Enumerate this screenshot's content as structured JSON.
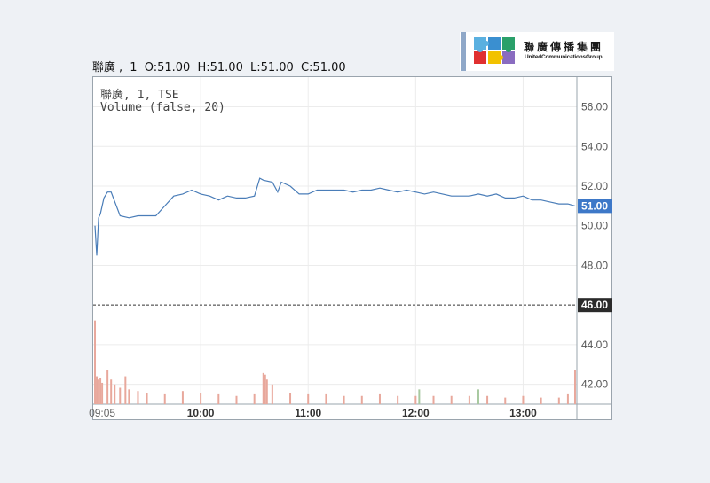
{
  "logo": {
    "name_cn": "聯廣傳播集團",
    "name_en": "UnitedCommunicationsGroup"
  },
  "legend": {
    "symbol": "聯廣",
    "interval": "1",
    "open": "O:51.00",
    "high": "H:51.00",
    "low": "L:51.00",
    "close": "C:51.00"
  },
  "pane": {
    "title": "聯廣, 1, TSE",
    "volume_label": "Volume (false, 20)"
  },
  "colors": {
    "price_line": "#4a7db8",
    "volume_bar": "#e8a89c",
    "volume_bar_up": "#a8c9a0",
    "last_price_tag": "#3d78c8",
    "ref_price_tag": "#2b2b2b",
    "grid": "#ececec"
  },
  "chart_data": {
    "type": "line",
    "title": "",
    "xlabel": "",
    "ylabel": "",
    "ylim": [
      41,
      57.5
    ],
    "x_range": [
      "09:00",
      "13:30"
    ],
    "x_ticks": [
      "09:05",
      "10:00",
      "11:00",
      "12:00",
      "13:00"
    ],
    "y_ticks": [
      "56.00",
      "54.00",
      "52.00",
      "50.00",
      "48.00",
      "44.00",
      "42.00"
    ],
    "last_price": "51.00",
    "reference_price": "46.00",
    "grid": true,
    "series": [
      {
        "type": "line",
        "x": [
          "09:01",
          "09:02",
          "09:03",
          "09:04",
          "09:06",
          "09:08",
          "09:10",
          "09:15",
          "09:20",
          "09:25",
          "09:30",
          "09:35",
          "09:40",
          "09:45",
          "09:50",
          "09:55",
          "10:00",
          "10:05",
          "10:10",
          "10:15",
          "10:20",
          "10:25",
          "10:30",
          "10:33",
          "10:35",
          "10:40",
          "10:43",
          "10:45",
          "10:50",
          "10:55",
          "11:00",
          "11:05",
          "11:10",
          "11:15",
          "11:20",
          "11:25",
          "11:30",
          "11:35",
          "11:40",
          "11:45",
          "11:50",
          "11:55",
          "12:00",
          "12:05",
          "12:10",
          "12:15",
          "12:20",
          "12:25",
          "12:30",
          "12:35",
          "12:40",
          "12:45",
          "12:50",
          "12:55",
          "13:00",
          "13:05",
          "13:10",
          "13:15",
          "13:20",
          "13:25",
          "13:29"
        ],
        "values": [
          50.0,
          48.5,
          50.4,
          50.6,
          51.4,
          51.7,
          51.7,
          50.5,
          50.4,
          50.5,
          50.5,
          50.5,
          51.0,
          51.5,
          51.6,
          51.8,
          51.6,
          51.5,
          51.3,
          51.5,
          51.4,
          51.4,
          51.5,
          52.4,
          52.3,
          52.2,
          51.7,
          52.2,
          52.0,
          51.6,
          51.6,
          51.8,
          51.8,
          51.8,
          51.8,
          51.7,
          51.8,
          51.8,
          51.9,
          51.8,
          51.7,
          51.8,
          51.7,
          51.6,
          51.7,
          51.6,
          51.5,
          51.5,
          51.5,
          51.6,
          51.5,
          51.6,
          51.4,
          51.4,
          51.5,
          51.3,
          51.3,
          51.2,
          51.1,
          51.1,
          51.0
        ]
      },
      {
        "type": "bar",
        "name": "Volume",
        "x": [
          "09:01",
          "09:02",
          "09:03",
          "09:04",
          "09:05",
          "09:08",
          "09:10",
          "09:12",
          "09:15",
          "09:18",
          "09:20",
          "09:25",
          "09:30",
          "09:40",
          "09:50",
          "10:00",
          "10:10",
          "10:20",
          "10:30",
          "10:35",
          "10:36",
          "10:37",
          "10:40",
          "10:50",
          "11:00",
          "11:10",
          "11:20",
          "11:30",
          "11:40",
          "11:50",
          "12:00",
          "12:02",
          "12:10",
          "12:20",
          "12:30",
          "12:35",
          "12:40",
          "12:50",
          "13:00",
          "13:10",
          "13:20",
          "13:25",
          "13:29"
        ],
        "values": [
          5.1,
          1.7,
          1.5,
          1.6,
          1.3,
          2.1,
          1.5,
          1.2,
          1.0,
          1.7,
          0.9,
          0.8,
          0.7,
          0.6,
          0.8,
          0.7,
          0.6,
          0.5,
          0.6,
          1.9,
          1.8,
          1.5,
          1.2,
          0.7,
          0.6,
          0.6,
          0.5,
          0.5,
          0.6,
          0.5,
          0.5,
          0.9,
          0.5,
          0.5,
          0.5,
          0.9,
          0.5,
          0.4,
          0.5,
          0.4,
          0.4,
          0.6,
          2.1
        ]
      }
    ]
  }
}
